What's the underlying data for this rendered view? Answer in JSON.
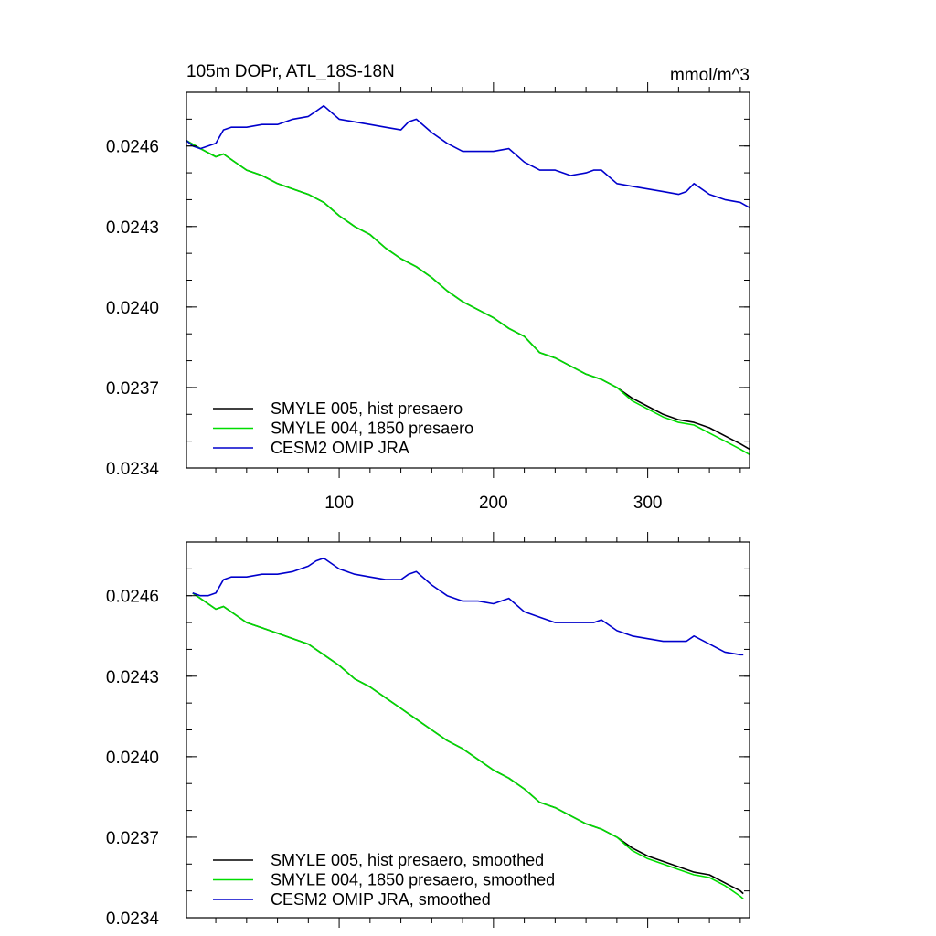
{
  "chart_data": [
    {
      "type": "line",
      "title": "105m DOPr, ATL_18S-18N",
      "units": "mmol/m^3",
      "xlim": [
        1,
        366
      ],
      "ylim": [
        0.0234,
        0.0248
      ],
      "yticks": [
        0.0234,
        0.0237,
        0.024,
        0.0243,
        0.0246
      ],
      "ytick_labels": [
        "0.0234",
        "0.0237",
        "0.0240",
        "0.0243",
        "0.0246"
      ],
      "xticks": [
        100,
        200,
        300
      ],
      "xtick_labels": [
        "100",
        "200",
        "300"
      ],
      "legend_position": "bottom-left",
      "series": [
        {
          "name": "SMYLE 005, hist presaero",
          "color": "#000000",
          "x": [
            1,
            10,
            20,
            25,
            30,
            40,
            50,
            60,
            70,
            80,
            90,
            100,
            110,
            120,
            130,
            140,
            150,
            160,
            170,
            180,
            190,
            200,
            210,
            220,
            230,
            240,
            250,
            260,
            270,
            280,
            290,
            300,
            310,
            320,
            330,
            340,
            350,
            360,
            366
          ],
          "values": [
            0.02462,
            0.02459,
            0.02456,
            0.02457,
            0.02455,
            0.02451,
            0.02449,
            0.02446,
            0.02444,
            0.02442,
            0.02439,
            0.02434,
            0.0243,
            0.02427,
            0.02422,
            0.02418,
            0.02415,
            0.02411,
            0.02406,
            0.02402,
            0.02399,
            0.02396,
            0.02392,
            0.02389,
            0.02383,
            0.02381,
            0.02378,
            0.02375,
            0.02373,
            0.0237,
            0.02366,
            0.02363,
            0.0236,
            0.02358,
            0.02357,
            0.02355,
            0.02352,
            0.02349,
            0.02347
          ]
        },
        {
          "name": "SMYLE 004, 1850 presaero",
          "color": "#00dd00",
          "x": [
            1,
            10,
            20,
            25,
            30,
            40,
            50,
            60,
            70,
            80,
            90,
            100,
            110,
            120,
            130,
            140,
            150,
            160,
            170,
            180,
            190,
            200,
            210,
            220,
            230,
            240,
            250,
            260,
            270,
            280,
            290,
            300,
            310,
            320,
            330,
            340,
            350,
            360,
            366
          ],
          "values": [
            0.02462,
            0.02459,
            0.02456,
            0.02457,
            0.02455,
            0.02451,
            0.02449,
            0.02446,
            0.02444,
            0.02442,
            0.02439,
            0.02434,
            0.0243,
            0.02427,
            0.02422,
            0.02418,
            0.02415,
            0.02411,
            0.02406,
            0.02402,
            0.02399,
            0.02396,
            0.02392,
            0.02389,
            0.02383,
            0.02381,
            0.02378,
            0.02375,
            0.02373,
            0.0237,
            0.02365,
            0.02362,
            0.02359,
            0.02357,
            0.02356,
            0.02353,
            0.0235,
            0.02347,
            0.02345
          ]
        },
        {
          "name": "CESM2 OMIP JRA",
          "color": "#0000cc",
          "x": [
            1,
            5,
            10,
            15,
            20,
            25,
            30,
            40,
            50,
            60,
            70,
            80,
            85,
            90,
            100,
            110,
            120,
            130,
            140,
            145,
            150,
            160,
            170,
            180,
            190,
            200,
            210,
            220,
            230,
            240,
            250,
            260,
            265,
            270,
            280,
            290,
            300,
            310,
            320,
            325,
            330,
            340,
            350,
            360,
            366
          ],
          "values": [
            0.02462,
            0.0246,
            0.02459,
            0.0246,
            0.02461,
            0.02466,
            0.02467,
            0.02467,
            0.02468,
            0.02468,
            0.0247,
            0.02471,
            0.02473,
            0.02475,
            0.0247,
            0.02469,
            0.02468,
            0.02467,
            0.02466,
            0.02469,
            0.0247,
            0.02465,
            0.02461,
            0.02458,
            0.02458,
            0.02458,
            0.02459,
            0.02454,
            0.02451,
            0.02451,
            0.02449,
            0.0245,
            0.02451,
            0.02451,
            0.02446,
            0.02445,
            0.02444,
            0.02443,
            0.02442,
            0.02443,
            0.02446,
            0.02442,
            0.0244,
            0.02439,
            0.02437
          ]
        }
      ]
    },
    {
      "type": "line",
      "title": "",
      "units": "",
      "xlim": [
        1,
        366
      ],
      "ylim": [
        0.0234,
        0.0248
      ],
      "yticks": [
        0.0234,
        0.0237,
        0.024,
        0.0243,
        0.0246
      ],
      "ytick_labels": [
        "0.0234",
        "0.0237",
        "0.0240",
        "0.0243",
        "0.0246"
      ],
      "xticks": [
        100,
        200,
        300
      ],
      "xtick_labels": [
        "",
        "",
        ""
      ],
      "legend_position": "bottom-left",
      "series": [
        {
          "name": "SMYLE 005, hist presaero, smoothed",
          "color": "#000000",
          "x": [
            5,
            15,
            20,
            25,
            30,
            40,
            50,
            60,
            70,
            80,
            90,
            100,
            110,
            120,
            130,
            140,
            150,
            160,
            170,
            180,
            190,
            200,
            210,
            220,
            230,
            240,
            250,
            260,
            270,
            280,
            290,
            300,
            310,
            320,
            330,
            340,
            350,
            360,
            362
          ],
          "values": [
            0.02461,
            0.02457,
            0.02455,
            0.02456,
            0.02454,
            0.0245,
            0.02448,
            0.02446,
            0.02444,
            0.02442,
            0.02438,
            0.02434,
            0.02429,
            0.02426,
            0.02422,
            0.02418,
            0.02414,
            0.0241,
            0.02406,
            0.02403,
            0.02399,
            0.02395,
            0.02392,
            0.02388,
            0.02383,
            0.02381,
            0.02378,
            0.02375,
            0.02373,
            0.0237,
            0.02366,
            0.02363,
            0.02361,
            0.02359,
            0.02357,
            0.02356,
            0.02353,
            0.0235,
            0.02349
          ]
        },
        {
          "name": "SMYLE 004, 1850 presaero, smoothed",
          "color": "#00dd00",
          "x": [
            5,
            15,
            20,
            25,
            30,
            40,
            50,
            60,
            70,
            80,
            90,
            100,
            110,
            120,
            130,
            140,
            150,
            160,
            170,
            180,
            190,
            200,
            210,
            220,
            230,
            240,
            250,
            260,
            270,
            280,
            290,
            300,
            310,
            320,
            330,
            340,
            350,
            360,
            362
          ],
          "values": [
            0.02461,
            0.02457,
            0.02455,
            0.02456,
            0.02454,
            0.0245,
            0.02448,
            0.02446,
            0.02444,
            0.02442,
            0.02438,
            0.02434,
            0.02429,
            0.02426,
            0.02422,
            0.02418,
            0.02414,
            0.0241,
            0.02406,
            0.02403,
            0.02399,
            0.02395,
            0.02392,
            0.02388,
            0.02383,
            0.02381,
            0.02378,
            0.02375,
            0.02373,
            0.0237,
            0.02365,
            0.02362,
            0.0236,
            0.02358,
            0.02356,
            0.02355,
            0.02352,
            0.02348,
            0.02347
          ]
        },
        {
          "name": "CESM2 OMIP JRA, smoothed",
          "color": "#0000cc",
          "x": [
            5,
            10,
            15,
            20,
            25,
            30,
            40,
            50,
            60,
            70,
            80,
            85,
            90,
            100,
            110,
            120,
            130,
            140,
            145,
            150,
            160,
            170,
            180,
            190,
            200,
            210,
            220,
            230,
            240,
            250,
            260,
            265,
            270,
            280,
            290,
            300,
            310,
            320,
            325,
            330,
            340,
            350,
            360,
            362
          ],
          "values": [
            0.02461,
            0.0246,
            0.0246,
            0.02461,
            0.02466,
            0.02467,
            0.02467,
            0.02468,
            0.02468,
            0.02469,
            0.02471,
            0.02473,
            0.02474,
            0.0247,
            0.02468,
            0.02467,
            0.02466,
            0.02466,
            0.02468,
            0.02469,
            0.02464,
            0.0246,
            0.02458,
            0.02458,
            0.02457,
            0.02459,
            0.02454,
            0.02452,
            0.0245,
            0.0245,
            0.0245,
            0.0245,
            0.02451,
            0.02447,
            0.02445,
            0.02444,
            0.02443,
            0.02443,
            0.02443,
            0.02445,
            0.02442,
            0.02439,
            0.02438,
            0.02438
          ]
        }
      ]
    }
  ]
}
